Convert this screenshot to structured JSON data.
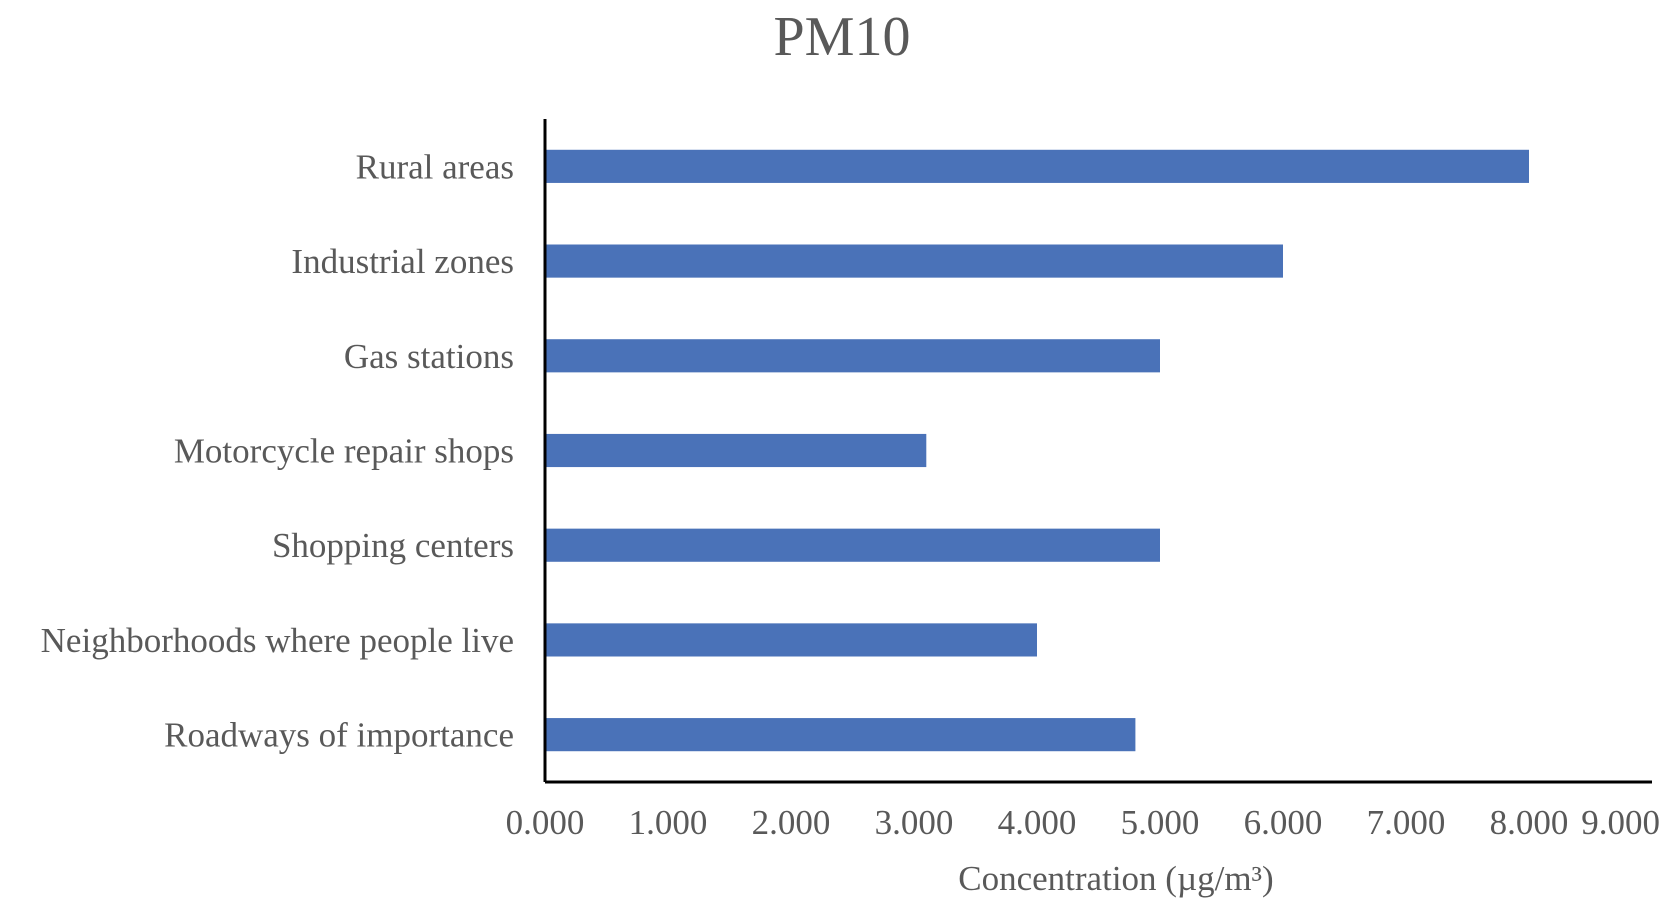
{
  "chart_data": {
    "type": "bar",
    "orientation": "horizontal",
    "title": "PM10",
    "xlabel": "Concentration (µg/m³)",
    "ylabel": "",
    "categories": [
      "Rural areas",
      "Industrial zones",
      "Gas stations",
      "Motorcycle repair shops",
      "Shopping centers",
      "Neighborhoods where people live",
      "Roadways of importance"
    ],
    "values": [
      8.0,
      6.0,
      5.0,
      3.1,
      5.0,
      4.0,
      4.8
    ],
    "xlim": [
      0,
      9
    ],
    "xticks": [
      "0.000",
      "1.000",
      "2.000",
      "3.000",
      "4.000",
      "5.000",
      "6.000",
      "7.000",
      "8.000",
      "9.000"
    ],
    "grid": false,
    "legend": "none",
    "bar_color": "#4A72B8",
    "axis_color": "#000000",
    "text_color": "#595959"
  }
}
